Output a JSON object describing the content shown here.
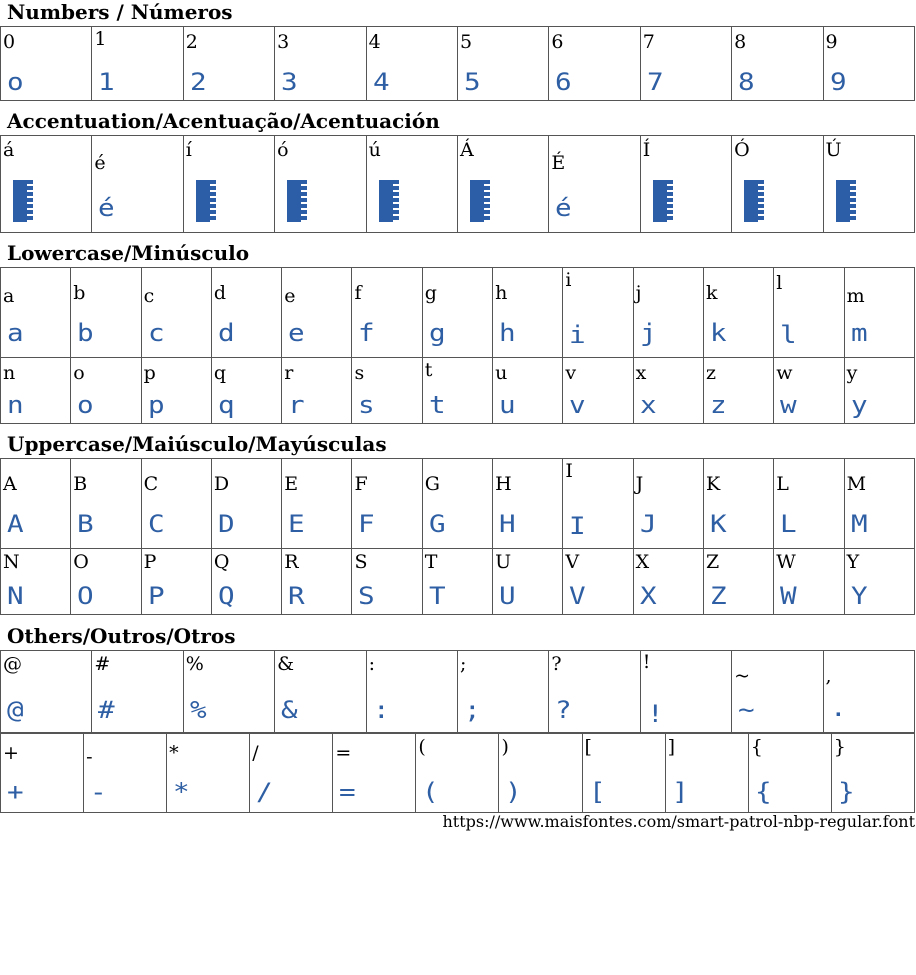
{
  "sections": {
    "numbers": "Numbers / Números",
    "accents": "Accentuation/Acentuação/Acentuación",
    "lower": "Lowercase/Minúsculo",
    "upper": "Uppercase/Maiúsculo/Mayúsculas",
    "others": "Others/Outros/Otros"
  },
  "numbers": {
    "labels": [
      "0",
      "1",
      "2",
      "3",
      "4",
      "5",
      "6",
      "7",
      "8",
      "9"
    ],
    "glyphs": [
      "o",
      "1",
      "2",
      "3",
      "4",
      "5",
      "6",
      "7",
      "8",
      "9"
    ]
  },
  "accents": {
    "labels": [
      "á",
      "é",
      "í",
      "ó",
      "ú",
      "Á",
      "É",
      "Í",
      "Ó",
      "Ú"
    ],
    "glyphs": [
      "",
      "é",
      "",
      "",
      "",
      "",
      "é",
      "",
      "",
      ""
    ]
  },
  "lower1": {
    "labels": [
      "a",
      "b",
      "c",
      "d",
      "e",
      "f",
      "g",
      "h",
      "i",
      "j",
      "k",
      "l",
      "m"
    ],
    "glyphs": [
      "a",
      "b",
      "c",
      "d",
      "e",
      "f",
      "g",
      "h",
      "i",
      "j",
      "k",
      "l",
      "m"
    ]
  },
  "lower2": {
    "labels": [
      "n",
      "o",
      "p",
      "q",
      "r",
      "s",
      "t",
      "u",
      "v",
      "x",
      "z",
      "w",
      "y"
    ],
    "glyphs": [
      "n",
      "o",
      "p",
      "q",
      "r",
      "s",
      "t",
      "u",
      "v",
      "x",
      "z",
      "w",
      "y"
    ]
  },
  "upper1": {
    "labels": [
      "A",
      "B",
      "C",
      "D",
      "E",
      "F",
      "G",
      "H",
      "I",
      "J",
      "K",
      "L",
      "M"
    ],
    "glyphs": [
      "A",
      "B",
      "C",
      "D",
      "E",
      "F",
      "G",
      "H",
      "I",
      "J",
      "K",
      "L",
      "M"
    ]
  },
  "upper2": {
    "labels": [
      "N",
      "O",
      "P",
      "Q",
      "R",
      "S",
      "T",
      "U",
      "V",
      "X",
      "Z",
      "W",
      "Y"
    ],
    "glyphs": [
      "N",
      "O",
      "P",
      "Q",
      "R",
      "S",
      "T",
      "U",
      "V",
      "X",
      "Z",
      "W",
      "Y"
    ]
  },
  "others1": {
    "labels": [
      "@",
      "#",
      "%",
      "&",
      ":",
      ";",
      "?",
      "!",
      "~",
      ","
    ],
    "glyphs": [
      "@",
      "#",
      "%",
      "&",
      ":",
      ";",
      "?",
      "!",
      "~",
      "."
    ]
  },
  "others2": {
    "labels": [
      "+",
      "-",
      "*",
      "/",
      "=",
      "(",
      ")",
      "[",
      "]",
      "{",
      "}"
    ],
    "glyphs": [
      "+",
      "-",
      "*",
      "/",
      "=",
      "(",
      ")",
      "[",
      "]",
      "{",
      "}"
    ]
  },
  "source_url": "https://www.maisfontes.com/smart-patrol-nbp-regular.font",
  "colors": {
    "glyph": "#2e5ea3",
    "border": "#555555"
  }
}
